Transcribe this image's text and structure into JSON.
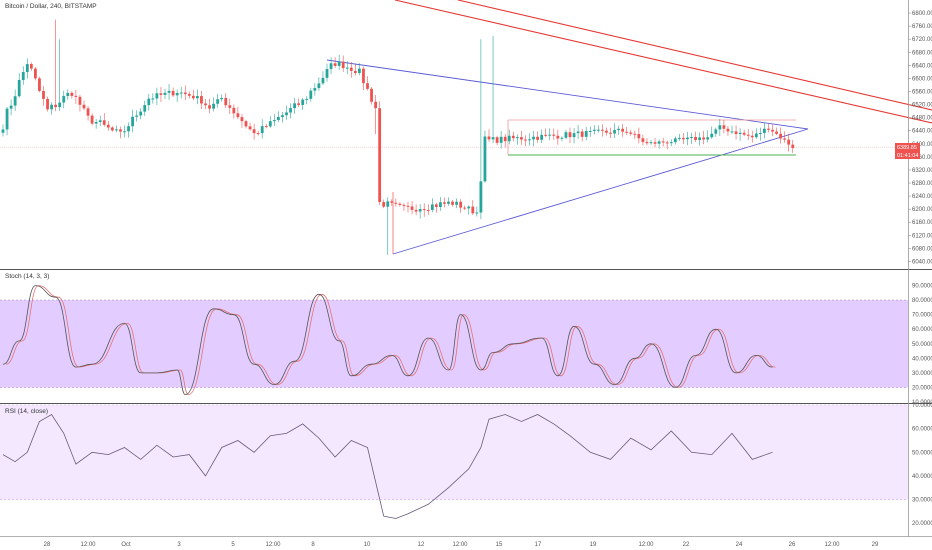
{
  "colors": {
    "up": "#26a69a",
    "down": "#ef5350",
    "wick": "#999999",
    "trend_blue": "#5b5bd6",
    "trend_red": "#e53935",
    "support_green": "#4caf50",
    "stoch_k": "#555555",
    "stoch_d": "#e57373",
    "stoch_band": "#e3ccff",
    "rsi_line": "#6a5a7a",
    "rsi_band": "#f3e8ff",
    "price_label_bg": "#ef5350"
  },
  "chart_data": [
    {
      "type": "candlestick",
      "title": "Bitcoin / Dollar, 240, BITSTAMP",
      "xlabel": "",
      "ylabel": "",
      "ylim": [
        6020,
        6840
      ],
      "y_ticks": [
        "6800.00",
        "6760.00",
        "6720.00",
        "6680.00",
        "6640.00",
        "6600.00",
        "6560.00",
        "6520.00",
        "6480.00",
        "6440.00",
        "6400.00",
        "6360.00",
        "6320.00",
        "6280.00",
        "6240.00",
        "6200.00",
        "6160.00",
        "6120.00",
        "6080.00",
        "6040.00"
      ],
      "x_ticks": [
        "28",
        "12:00",
        "Oct",
        "3",
        "5",
        "12:00",
        "8",
        "10",
        "12",
        "12:00",
        "15",
        "17",
        "19",
        "12:00",
        "22",
        "24",
        "26",
        "12:00",
        "29"
      ],
      "last_price_labels": [
        "6389.85",
        "01:41:04"
      ],
      "segments": [
        {
          "from": 0,
          "to": 7,
          "start": 6430,
          "end": 6650,
          "swing": 35
        },
        {
          "from": 7,
          "to": 12,
          "start": 6650,
          "end": 6500,
          "swing": 40
        },
        {
          "from": 12,
          "to": 18,
          "start": 6500,
          "end": 6560,
          "swing": 30
        },
        {
          "from": 18,
          "to": 22,
          "start": 6560,
          "end": 6480,
          "swing": 20
        },
        {
          "from": 22,
          "to": 30,
          "start": 6480,
          "end": 6425,
          "swing": 30
        },
        {
          "from": 30,
          "to": 37,
          "start": 6425,
          "end": 6540,
          "swing": 25
        },
        {
          "from": 37,
          "to": 44,
          "start": 6540,
          "end": 6560,
          "swing": 20
        },
        {
          "from": 44,
          "to": 49,
          "start": 6560,
          "end": 6540,
          "swing": 15
        },
        {
          "from": 49,
          "to": 52,
          "start": 6540,
          "end": 6510,
          "swing": 15
        },
        {
          "from": 52,
          "to": 55,
          "start": 6510,
          "end": 6540,
          "swing": 15
        },
        {
          "from": 55,
          "to": 63,
          "start": 6540,
          "end": 6430,
          "swing": 25
        },
        {
          "from": 63,
          "to": 68,
          "start": 6430,
          "end": 6470,
          "swing": 20
        },
        {
          "from": 68,
          "to": 75,
          "start": 6470,
          "end": 6530,
          "swing": 25
        },
        {
          "from": 75,
          "to": 83,
          "start": 6530,
          "end": 6650,
          "swing": 30
        },
        {
          "from": 83,
          "to": 89,
          "start": 6650,
          "end": 6620,
          "swing": 20
        },
        {
          "from": 89,
          "to": 93,
          "start": 6620,
          "end": 6510,
          "swing": 25
        },
        {
          "from": 93,
          "to": 94,
          "start": 6510,
          "end": 6220,
          "swing": 20
        },
        {
          "from": 94,
          "to": 100,
          "start": 6220,
          "end": 6200,
          "swing": 25
        },
        {
          "from": 100,
          "to": 112,
          "start": 6200,
          "end": 6220,
          "swing": 25
        },
        {
          "from": 112,
          "to": 118,
          "start": 6220,
          "end": 6190,
          "swing": 20
        },
        {
          "from": 118,
          "to": 120,
          "start": 6190,
          "end": 6410,
          "swing": 30
        },
        {
          "from": 120,
          "to": 155,
          "start": 6410,
          "end": 6440,
          "swing": 20
        },
        {
          "from": 155,
          "to": 160,
          "start": 6440,
          "end": 6400,
          "swing": 15
        },
        {
          "from": 160,
          "to": 175,
          "start": 6400,
          "end": 6420,
          "swing": 15
        },
        {
          "from": 175,
          "to": 178,
          "start": 6420,
          "end": 6450,
          "swing": 15
        },
        {
          "from": 178,
          "to": 186,
          "start": 6450,
          "end": 6420,
          "swing": 15
        },
        {
          "from": 186,
          "to": 190,
          "start": 6420,
          "end": 6450,
          "swing": 15
        },
        {
          "from": 190,
          "to": 196,
          "start": 6450,
          "end": 6390,
          "swing": 12
        }
      ]
    },
    {
      "type": "line",
      "title": "Stoch (14, 3, 3)",
      "ylim": [
        10,
        100
      ],
      "band": [
        20,
        80
      ],
      "y_ticks": [
        "90.0000",
        "80.0000",
        "70.0000",
        "60.0000",
        "50.0000",
        "40.0000",
        "30.0000",
        "20.0000",
        "10.0000"
      ],
      "series": [
        {
          "role": "k",
          "x": [
            0,
            4,
            8,
            13,
            18,
            22,
            30,
            34,
            38,
            43,
            45,
            52,
            57,
            62,
            67,
            72,
            78,
            83,
            86,
            91,
            96,
            100,
            105,
            110,
            113,
            118,
            121,
            126,
            133,
            137,
            141,
            146,
            151,
            156,
            160,
            166,
            171,
            176,
            181,
            186,
            190
          ],
          "values": [
            36,
            52,
            90,
            82,
            34,
            36,
            64,
            30,
            30,
            32,
            15,
            74,
            70,
            36,
            22,
            38,
            84,
            52,
            28,
            36,
            42,
            28,
            54,
            32,
            70,
            32,
            44,
            50,
            54,
            28,
            62,
            36,
            22,
            40,
            50,
            20,
            42,
            60,
            30,
            42,
            34
          ]
        }
      ]
    },
    {
      "type": "line",
      "title": "RSI (14, close)",
      "ylim": [
        15,
        70
      ],
      "band": [
        30,
        70
      ],
      "y_ticks": [
        "70.0000",
        "60.0000",
        "50.0000",
        "40.0000",
        "30.0000",
        "20.0000"
      ],
      "series": [
        {
          "name": "",
          "x": [
            0,
            3,
            6,
            9,
            12,
            15,
            18,
            22,
            26,
            30,
            34,
            38,
            42,
            46,
            50,
            54,
            58,
            62,
            66,
            70,
            74,
            78,
            82,
            86,
            90,
            94,
            97,
            100,
            105,
            110,
            115,
            118,
            120,
            124,
            128,
            132,
            136,
            140,
            145,
            150,
            155,
            160,
            165,
            170,
            175,
            180,
            185,
            190
          ],
          "values": [
            49,
            46,
            50,
            63,
            66,
            58,
            45,
            50,
            49,
            52,
            47,
            53,
            48,
            49,
            40,
            52,
            55,
            50,
            57,
            58,
            62,
            56,
            48,
            55,
            52,
            23,
            22,
            24,
            28,
            35,
            43,
            52,
            64,
            66,
            63,
            66,
            62,
            57,
            50,
            47,
            56,
            51,
            59,
            50,
            49,
            58,
            47,
            50
          ]
        }
      ]
    }
  ]
}
